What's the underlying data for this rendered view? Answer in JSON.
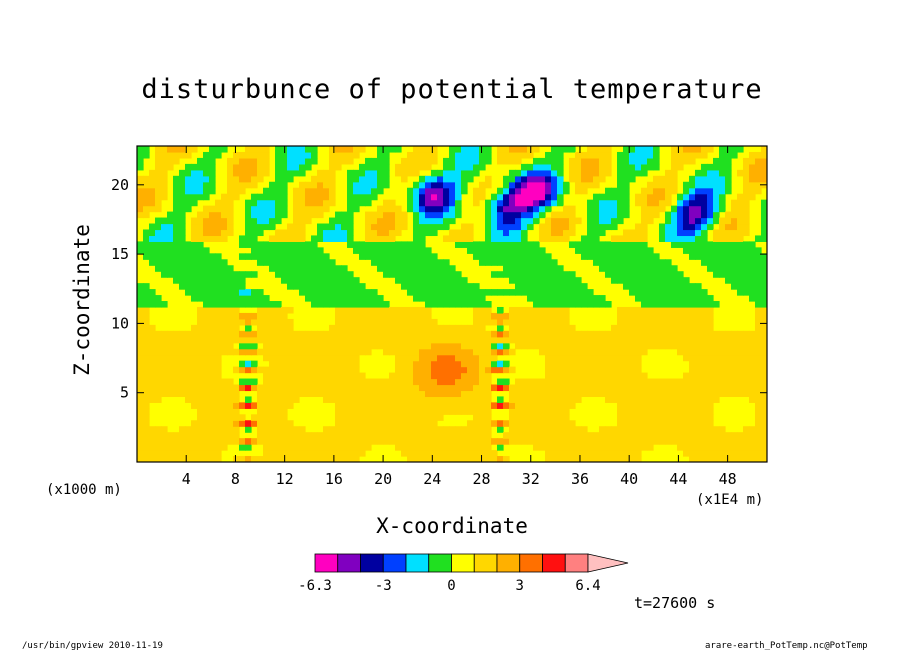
{
  "chart_data": {
    "type": "heatmap",
    "title": "disturbunce of potential temperature",
    "xlabel": "X-coordinate",
    "ylabel": "Z-coordinate",
    "x_unit_label": "(x1000 m)",
    "x_scale_label": "(x1E4 m)",
    "xlim": [
      0,
      51.2
    ],
    "ylim": [
      0,
      22.8
    ],
    "xticks": [
      4,
      8,
      12,
      16,
      20,
      24,
      28,
      32,
      36,
      40,
      44,
      48
    ],
    "yticks": [
      5,
      10,
      15,
      20
    ],
    "colorbar": {
      "levels": [
        -6.3,
        -5.4,
        -4.2,
        -3,
        -1.8,
        -0.6,
        0.6,
        1.8,
        3,
        4.2,
        5.4,
        6.4
      ],
      "tick_labels": [
        "-6.3",
        "-3",
        "0",
        "3",
        "6.4"
      ],
      "colors": [
        "#ff00c0",
        "#8000c0",
        "#0000a0",
        "#0040ff",
        "#00e0ff",
        "#20e020",
        "#ffff00",
        "#ffd700",
        "#ffb000",
        "#ff7000",
        "#ff1010",
        "#ff8080",
        "#ffc0c0"
      ]
    },
    "features": [
      {
        "kind": "cold_anomaly",
        "x": 30,
        "z": 18.5
      },
      {
        "kind": "cold_anomaly",
        "x": 45.5,
        "z": 18
      },
      {
        "kind": "cold_anomaly",
        "x": 24,
        "z": 19.5
      },
      {
        "kind": "cold_anomaly",
        "x": 32.5,
        "z": 19.5
      },
      {
        "kind": "warm_anomaly",
        "x": 25,
        "z": 6.5
      },
      {
        "kind": "convective_column",
        "x": 29.5,
        "z": 6
      },
      {
        "kind": "convective_column",
        "x": 9,
        "z": 5
      }
    ]
  },
  "annotation_time": "t=27600 s",
  "footer_left": "/usr/bin/gpview  2010-11-19",
  "footer_right": "arare-earth_PotTemp.nc@PotTemp"
}
